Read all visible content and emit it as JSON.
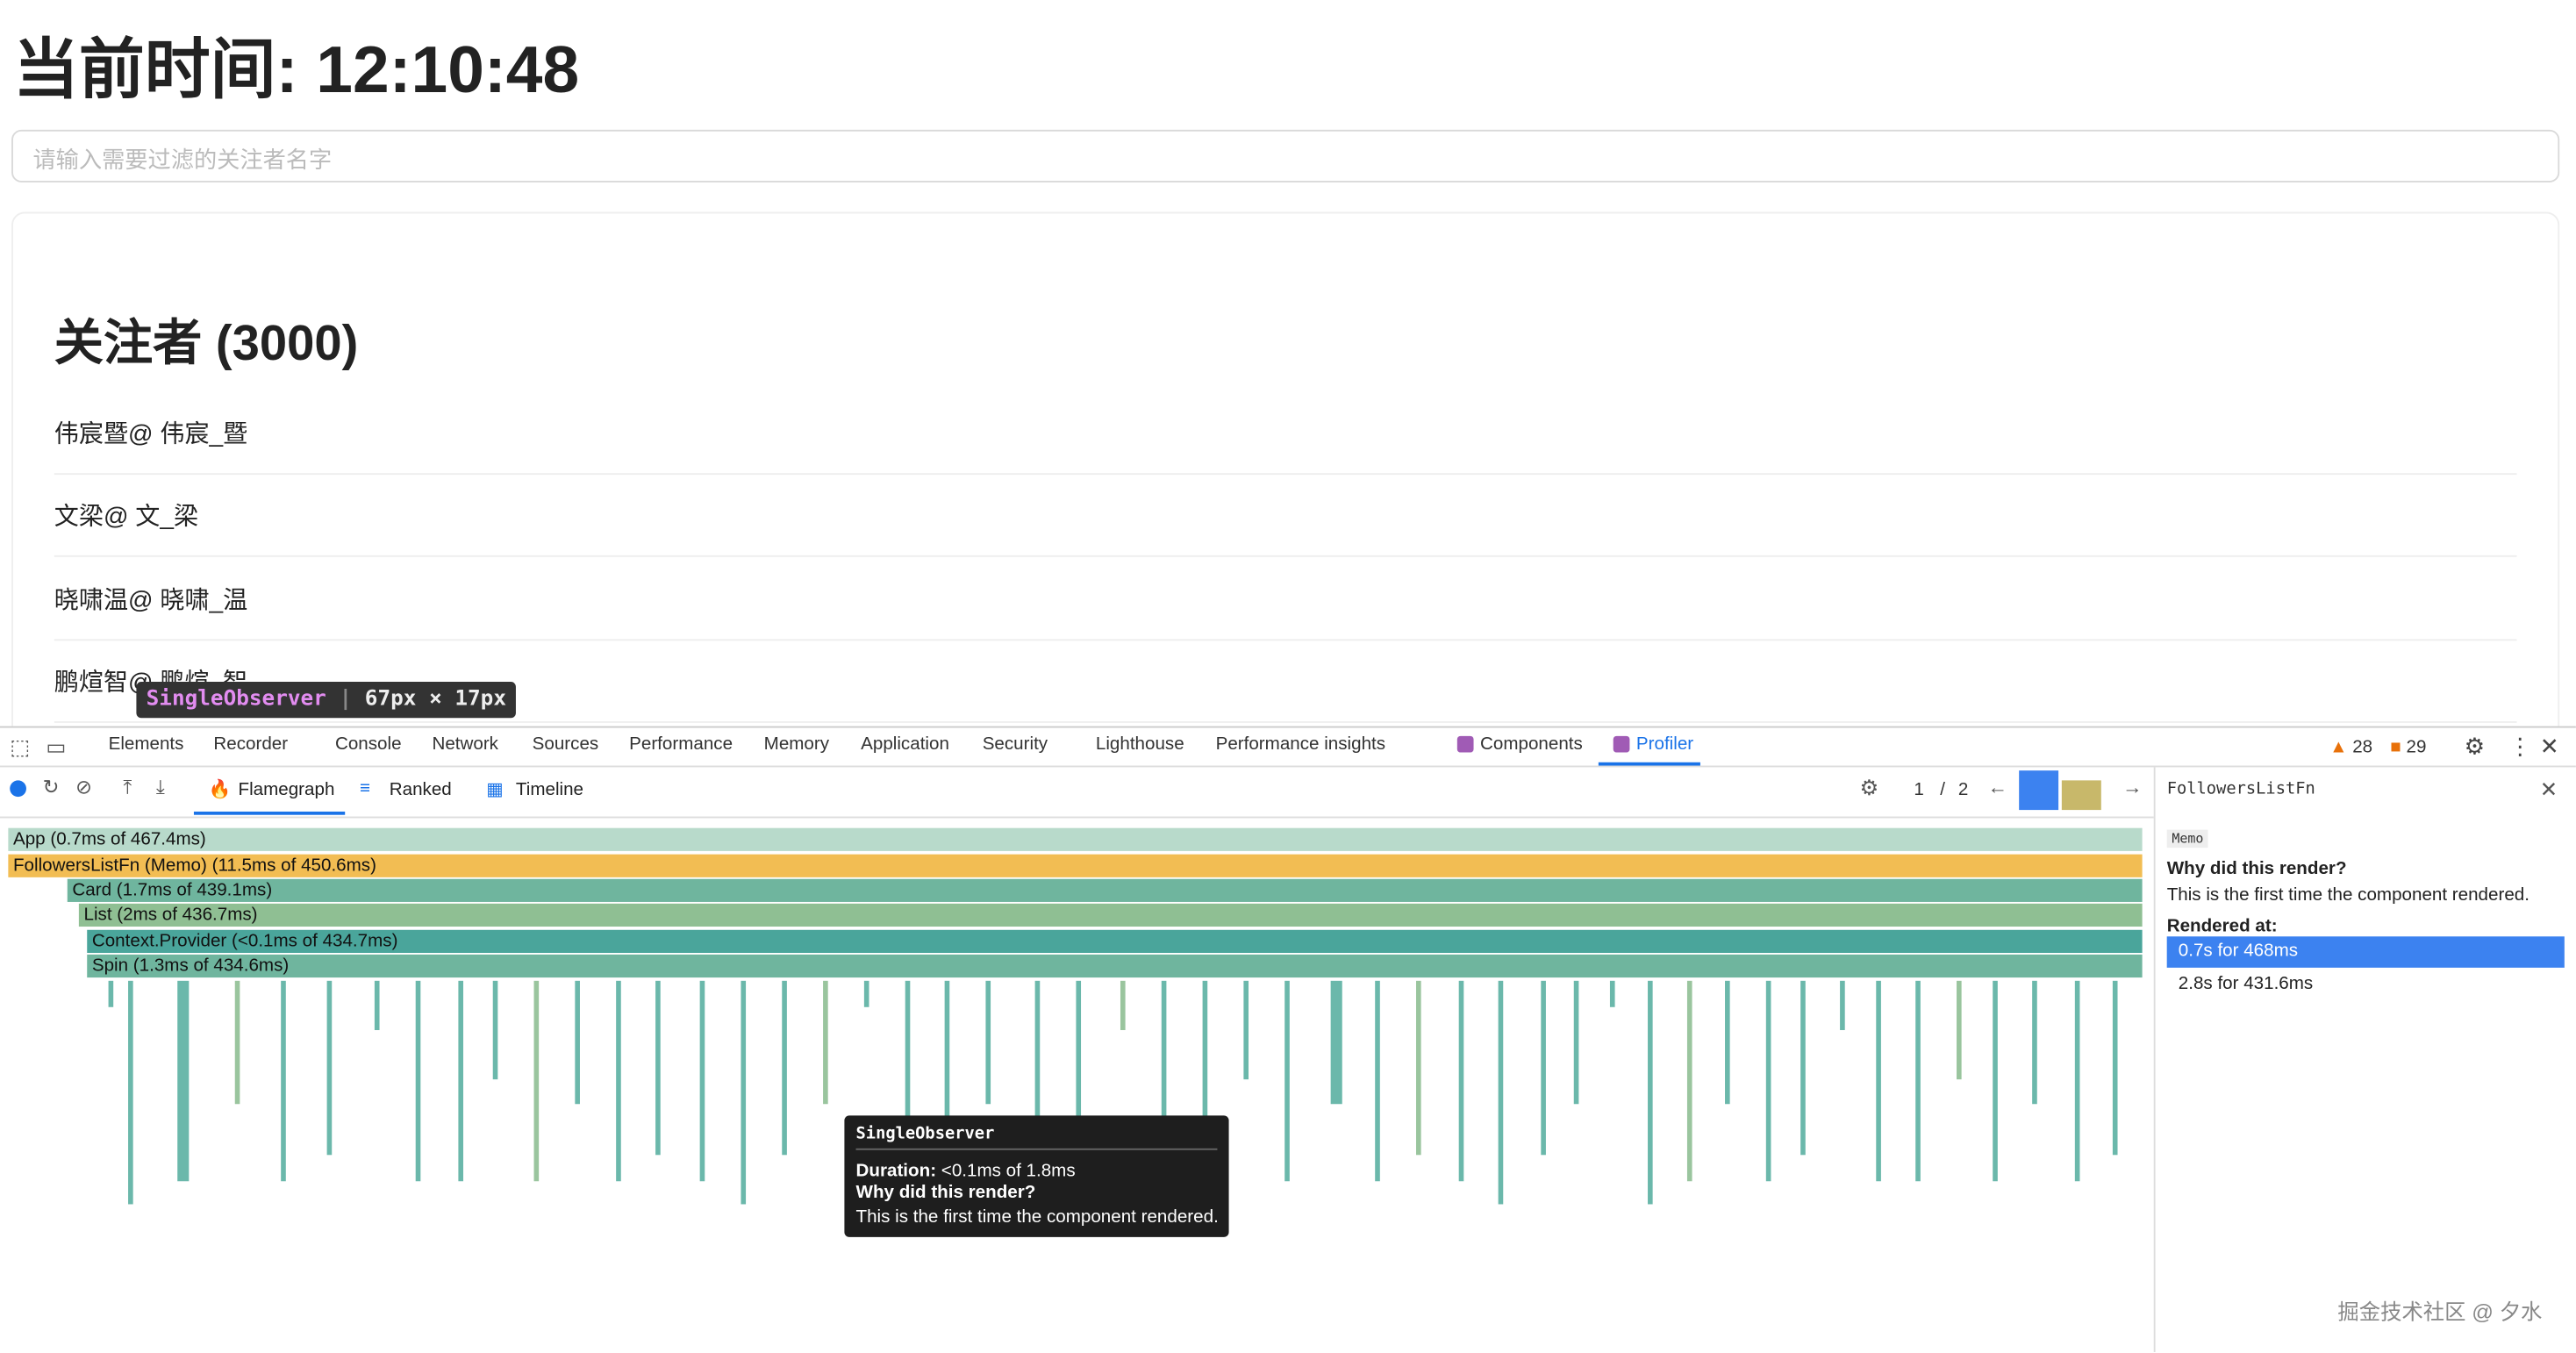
{
  "page": {
    "heading": "当前时间: 12:10:48",
    "search_placeholder": "请输入需要过滤的关注者名字",
    "list_title": "关注者 (3000)",
    "followers": [
      "伟宸暨@ 伟宸_暨",
      "文梁@ 文_梁",
      "晓啸温@ 晓啸_温",
      "鹏煊智@ 鹏煊_智"
    ]
  },
  "inspect_tooltip": {
    "name": "SingleObserver",
    "size": "67px × 17px"
  },
  "devtools": {
    "tabs": [
      "Elements",
      "Recorder",
      "Console",
      "Network",
      "Sources",
      "Performance",
      "Memory",
      "Application",
      "Security",
      "Lighthouse",
      "Performance insights",
      "Components",
      "Profiler"
    ],
    "warnings": 28,
    "issues": 29
  },
  "profiler": {
    "views": [
      "Flamegraph",
      "Ranked",
      "Timeline"
    ],
    "commit": 1,
    "separator": "/",
    "commit_total": 2,
    "flamegraph": [
      "App (0.7ms of 467.4ms)",
      "FollowersListFn (Memo) (11.5ms of 450.6ms)",
      "Card (1.7ms of 439.1ms)",
      "List (2ms of 436.7ms)",
      "Context.Provider (<0.1ms of 434.7ms)",
      "Spin (1.3ms of 434.6ms)"
    ],
    "tooltip": {
      "title": "SingleObserver",
      "duration_label": "Duration:",
      "duration": "<0.1ms of 1.8ms",
      "why_title": "Why did this render?",
      "why_text": "This is the first time the component rendered."
    }
  },
  "sidebar": {
    "component": "FollowersListFn",
    "badge": "Memo",
    "why_title": "Why did this render?",
    "why_text": "This is the first time the component rendered.",
    "rendered_title": "Rendered at:",
    "renders": [
      "0.7s for 468ms",
      "2.8s for 431.6ms"
    ]
  },
  "watermark": "掘金技术社区 @ 夕水"
}
